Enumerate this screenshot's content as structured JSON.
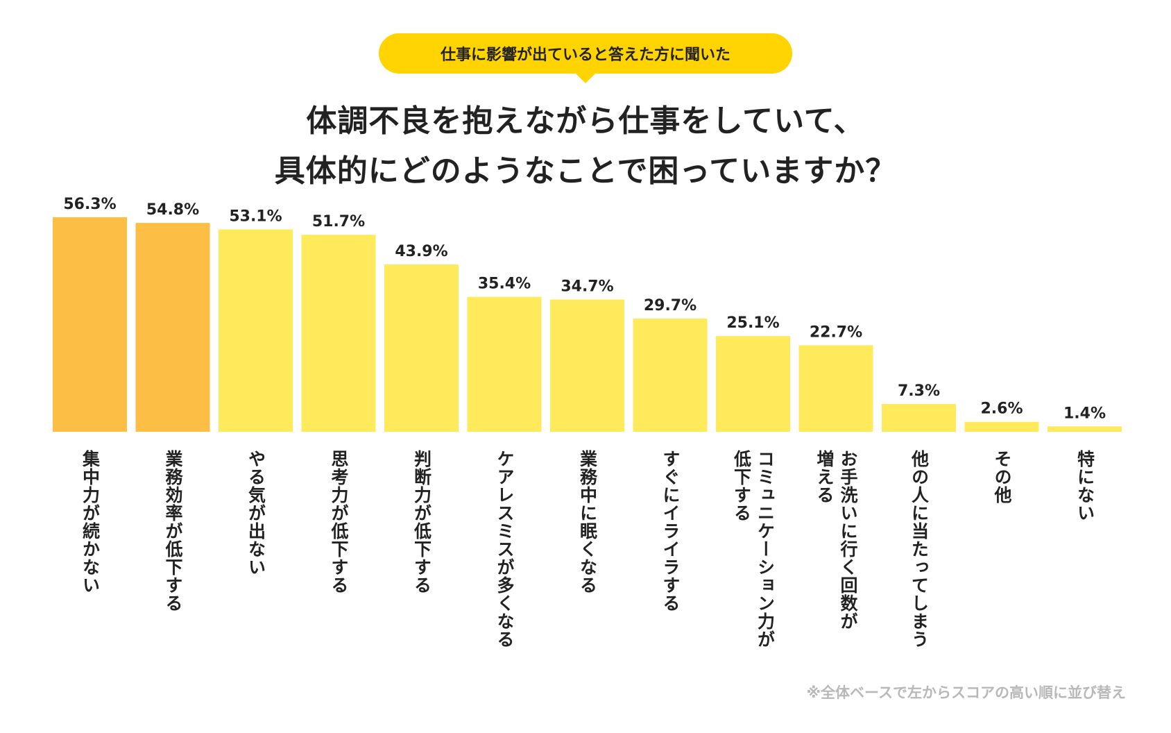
{
  "badge": "仕事に影響が出ていると答えた方に聞いた",
  "title": {
    "line1": "体調不良を抱えながら仕事をしていて、",
    "line2": "具体的にどのようなことで困っていますか？"
  },
  "footnote": "※全体ベースで左からスコアの高い順に並び替え",
  "colors": {
    "highlight": "#fcbe45",
    "normal": "#ffea5c",
    "badge": "#ffd400"
  },
  "chart_data": {
    "type": "bar",
    "title": "体調不良を抱えながら仕事をしていて、具体的にどのようなことで困っていますか？",
    "ylabel": "",
    "xlabel": "",
    "ylim": [
      0,
      60
    ],
    "grid": false,
    "categories": [
      "集中力が続かない",
      "業務効率が低下する",
      "やる気が出ない",
      "思考力が低下する",
      "判断力が低下する",
      "ケアレスミスが多くなる",
      "業務中に眠くなる",
      "すぐにイライラする",
      "コミュニケーション力が低下する",
      "お手洗いに行く回数が増える",
      "他の人に当たってしまう",
      "その他",
      "特にない"
    ],
    "label_lines": [
      [
        "集中力が続かない"
      ],
      [
        "業務効率が低下する"
      ],
      [
        "やる気が出ない"
      ],
      [
        "思考力が低下する"
      ],
      [
        "判断力が低下する"
      ],
      [
        "ケアレスミスが多くなる"
      ],
      [
        "業務中に眠くなる"
      ],
      [
        "すぐにイライラする"
      ],
      [
        "コミュニケーション力が",
        "低下する"
      ],
      [
        "お手洗いに行く回数が",
        "増える"
      ],
      [
        "他の人に当たってしまう"
      ],
      [
        "その他"
      ],
      [
        "特にない"
      ]
    ],
    "values": [
      56.3,
      54.8,
      53.1,
      51.7,
      43.9,
      35.4,
      34.7,
      29.7,
      25.1,
      22.7,
      7.3,
      2.6,
      1.4
    ],
    "value_labels": [
      "56.3%",
      "54.8%",
      "53.1%",
      "51.7%",
      "43.9%",
      "35.4%",
      "34.7%",
      "29.7%",
      "25.1%",
      "22.7%",
      "7.3%",
      "2.6%",
      "1.4%"
    ],
    "highlight": [
      true,
      true,
      false,
      false,
      false,
      false,
      false,
      false,
      false,
      false,
      false,
      false,
      false
    ]
  }
}
